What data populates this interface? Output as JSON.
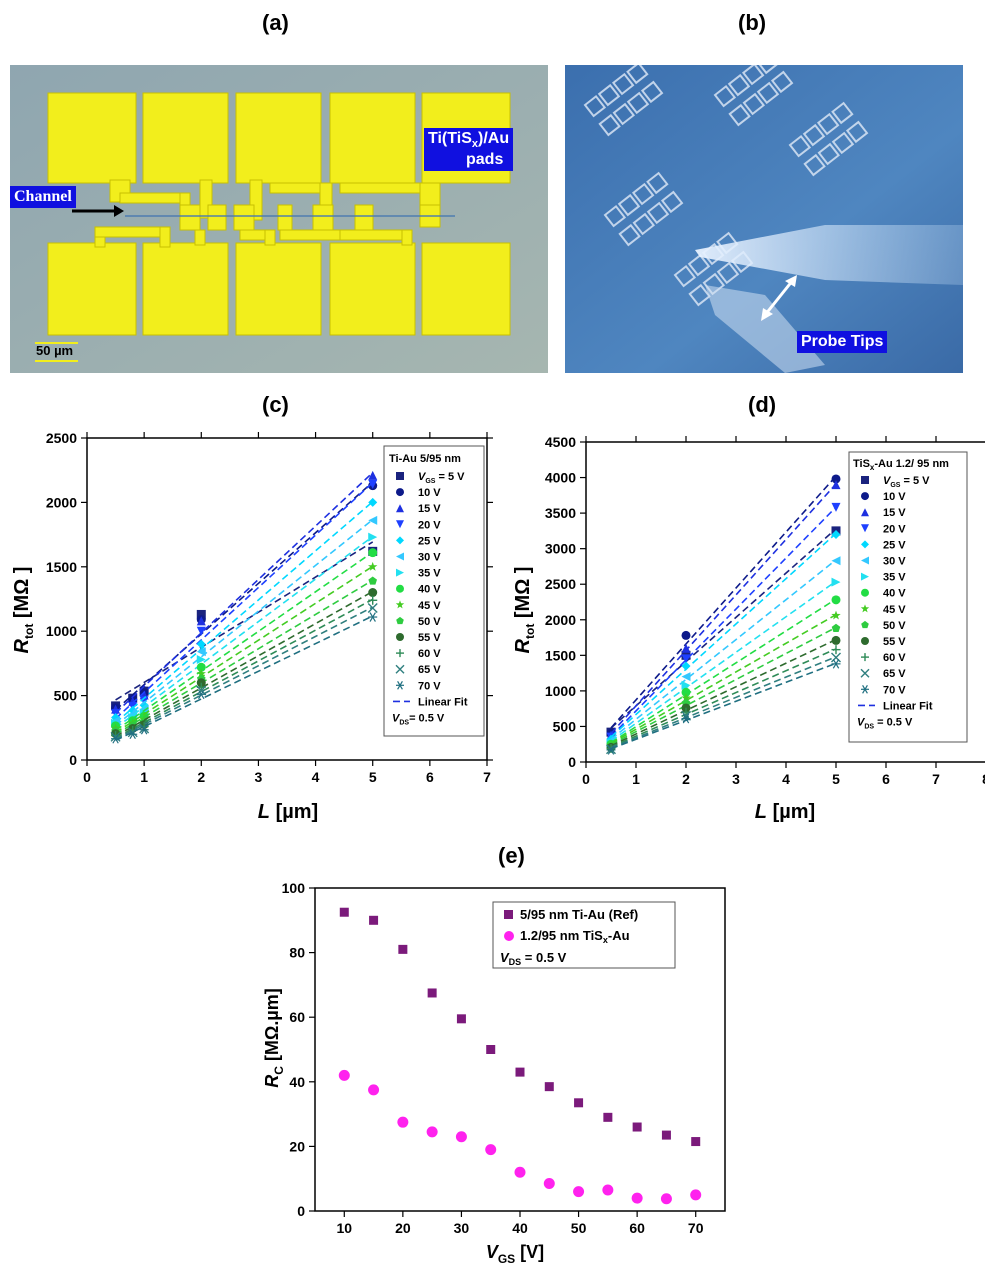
{
  "panels": {
    "a": "(a)",
    "b": "(b)",
    "c": "(c)",
    "d": "(d)",
    "e": "(e)"
  },
  "photo_a": {
    "pads_label_line1": "Ti(TiS",
    "pads_label_sub": "x",
    "pads_label_line1_end": ")/Au",
    "pads_label_line2": "pads",
    "channel_label": "Channel",
    "scale_bar": "50 µm"
  },
  "photo_b": {
    "probe_label": "Probe Tips"
  },
  "chart_c": {
    "xlabel_main": "L",
    "xlabel_unit": " [µm]",
    "ylabel_main": "R",
    "ylabel_sub": "tot",
    "ylabel_unit": " [MΩ ]",
    "legend_title": "Ti-Au 5/95 nm",
    "legend_vds_main": "V",
    "legend_vds_sub": "DS",
    "legend_vds_rest": "= 0.5 V",
    "legend_fit": "Linear Fit",
    "legend_first_main": "V",
    "legend_first_sub": "GS",
    "legend_first_rest": " = 5 V"
  },
  "chart_d": {
    "xlabel_main": "L",
    "xlabel_unit": " [µm]",
    "ylabel_main": "R",
    "ylabel_sub": "tot",
    "ylabel_unit": " [MΩ ]",
    "legend_title_main": "TiS",
    "legend_title_sub": "x",
    "legend_title_rest": "-Au 1.2/ 95 nm",
    "legend_vds_main": "V",
    "legend_vds_sub": "DS",
    "legend_vds_rest": " = 0.5 V",
    "legend_fit": "Linear Fit",
    "legend_first_main": "V",
    "legend_first_sub": "GS",
    "legend_first_rest": " = 5 V"
  },
  "chart_e": {
    "xlabel_main": "V",
    "xlabel_sub": "GS",
    "xlabel_unit": " [V]",
    "ylabel_main": "R",
    "ylabel_sub": "C",
    "ylabel_unit": " [MΩ.µm]",
    "legend_s1": "5/95 nm Ti-Au (Ref)",
    "legend_s2_main": "1.2/95 nm TiS",
    "legend_s2_sub": "x",
    "legend_s2_rest": "-Au",
    "legend_vds_main": "V",
    "legend_vds_sub": "DS",
    "legend_vds_rest": " = 0.5 V"
  },
  "chart_data": [
    {
      "type": "scatter",
      "panel": "c",
      "xlim": [
        0,
        7
      ],
      "ylim": [
        0,
        2500
      ],
      "xticks": [
        0,
        1,
        2,
        3,
        4,
        5,
        6,
        7
      ],
      "yticks": [
        0,
        500,
        1000,
        1500,
        2000,
        2500
      ],
      "x": [
        0.5,
        0.8,
        1,
        2,
        5
      ],
      "series": [
        {
          "name": "5 V",
          "color": "#1a237e",
          "marker": "square",
          "values": [
            420,
            480,
            535,
            1130,
            1620
          ]
        },
        {
          "name": "10 V",
          "color": "#0d1a8a",
          "marker": "circle",
          "values": [
            405,
            470,
            520,
            1090,
            2130
          ]
        },
        {
          "name": "15 V",
          "color": "#1e30e0",
          "marker": "tri-up",
          "values": [
            395,
            455,
            505,
            1080,
            2210
          ]
        },
        {
          "name": "20 V",
          "color": "#1e40ff",
          "marker": "tri-down",
          "values": [
            360,
            415,
            460,
            1000,
            2140
          ]
        },
        {
          "name": "25 V",
          "color": "#00d8ff",
          "marker": "diamond",
          "values": [
            330,
            385,
            425,
            900,
            2000
          ]
        },
        {
          "name": "30 V",
          "color": "#33c8ff",
          "marker": "tri-left",
          "values": [
            305,
            355,
            395,
            840,
            1860
          ]
        },
        {
          "name": "35 V",
          "color": "#22e0f0",
          "marker": "tri-right",
          "values": [
            285,
            330,
            365,
            780,
            1730
          ]
        },
        {
          "name": "40 V",
          "color": "#22dd44",
          "marker": "circle",
          "values": [
            265,
            305,
            340,
            720,
            1610
          ]
        },
        {
          "name": "45 V",
          "color": "#44cc22",
          "marker": "star",
          "values": [
            245,
            285,
            315,
            670,
            1500
          ]
        },
        {
          "name": "50 V",
          "color": "#2ecc40",
          "marker": "pentagon",
          "values": [
            225,
            265,
            295,
            630,
            1390
          ]
        },
        {
          "name": "55 V",
          "color": "#2e6b2e",
          "marker": "circle",
          "values": [
            205,
            245,
            275,
            600,
            1300
          ]
        },
        {
          "name": "60 V",
          "color": "#2e8b57",
          "marker": "plus",
          "values": [
            190,
            230,
            260,
            565,
            1240
          ]
        },
        {
          "name": "65 V",
          "color": "#2f7f7f",
          "marker": "x",
          "values": [
            180,
            215,
            245,
            540,
            1180
          ]
        },
        {
          "name": "70 V",
          "color": "#1f6f80",
          "marker": "asterisk",
          "values": [
            165,
            200,
            235,
            510,
            1110
          ]
        }
      ]
    },
    {
      "type": "scatter",
      "panel": "d",
      "xlim": [
        0,
        8
      ],
      "ylim": [
        0,
        4500
      ],
      "xticks": [
        0,
        1,
        2,
        3,
        4,
        5,
        6,
        7,
        8
      ],
      "yticks": [
        0,
        500,
        1000,
        1500,
        2000,
        2500,
        3000,
        3500,
        4000,
        4500
      ],
      "x": [
        0.5,
        2,
        5
      ],
      "series": [
        {
          "name": "5 V",
          "color": "#1a237e",
          "marker": "square",
          "values": [
            420,
            1500,
            3250
          ]
        },
        {
          "name": "10 V",
          "color": "#0d1a8a",
          "marker": "circle",
          "values": [
            400,
            1780,
            3980
          ]
        },
        {
          "name": "15 V",
          "color": "#1e30e0",
          "marker": "tri-up",
          "values": [
            380,
            1600,
            3900
          ]
        },
        {
          "name": "20 V",
          "color": "#1e40ff",
          "marker": "tri-down",
          "values": [
            350,
            1450,
            3580
          ]
        },
        {
          "name": "25 V",
          "color": "#00d8ff",
          "marker": "diamond",
          "values": [
            320,
            1350,
            3200
          ]
        },
        {
          "name": "30 V",
          "color": "#33c8ff",
          "marker": "tri-left",
          "values": [
            295,
            1200,
            2830
          ]
        },
        {
          "name": "35 V",
          "color": "#22e0f0",
          "marker": "tri-right",
          "values": [
            270,
            1080,
            2530
          ]
        },
        {
          "name": "40 V",
          "color": "#22dd44",
          "marker": "circle",
          "values": [
            250,
            980,
            2280
          ]
        },
        {
          "name": "45 V",
          "color": "#44cc22",
          "marker": "star",
          "values": [
            235,
            900,
            2060
          ]
        },
        {
          "name": "50 V",
          "color": "#2ecc40",
          "marker": "pentagon",
          "values": [
            220,
            830,
            1880
          ]
        },
        {
          "name": "55 V",
          "color": "#2e6b2e",
          "marker": "circle",
          "values": [
            205,
            760,
            1710
          ]
        },
        {
          "name": "60 V",
          "color": "#2e8b57",
          "marker": "plus",
          "values": [
            190,
            700,
            1580
          ]
        },
        {
          "name": "65 V",
          "color": "#2f7f7f",
          "marker": "x",
          "values": [
            180,
            650,
            1470
          ]
        },
        {
          "name": "70 V",
          "color": "#1f6f80",
          "marker": "asterisk",
          "values": [
            170,
            610,
            1380
          ]
        }
      ]
    },
    {
      "type": "scatter",
      "panel": "e",
      "xlim": [
        5,
        75
      ],
      "ylim": [
        0,
        100
      ],
      "xticks": [
        10,
        20,
        30,
        40,
        50,
        60,
        70
      ],
      "yticks": [
        0,
        20,
        40,
        60,
        80,
        100
      ],
      "x": [
        10,
        15,
        20,
        25,
        30,
        35,
        40,
        45,
        50,
        55,
        60,
        65,
        70
      ],
      "series": [
        {
          "name": "5/95 nm Ti-Au (Ref)",
          "color": "#7b1a7b",
          "marker": "square",
          "values": [
            92.5,
            90,
            81,
            67.5,
            59.5,
            50,
            43,
            38.5,
            33.5,
            29,
            26,
            23.5,
            21.5
          ]
        },
        {
          "name": "1.2/95 nm TiSx-Au",
          "color": "#ff22ee",
          "marker": "circle",
          "values": [
            42,
            37.5,
            27.5,
            24.5,
            23,
            19,
            12,
            8.5,
            6,
            6.5,
            4,
            3.8,
            5
          ]
        }
      ]
    }
  ]
}
